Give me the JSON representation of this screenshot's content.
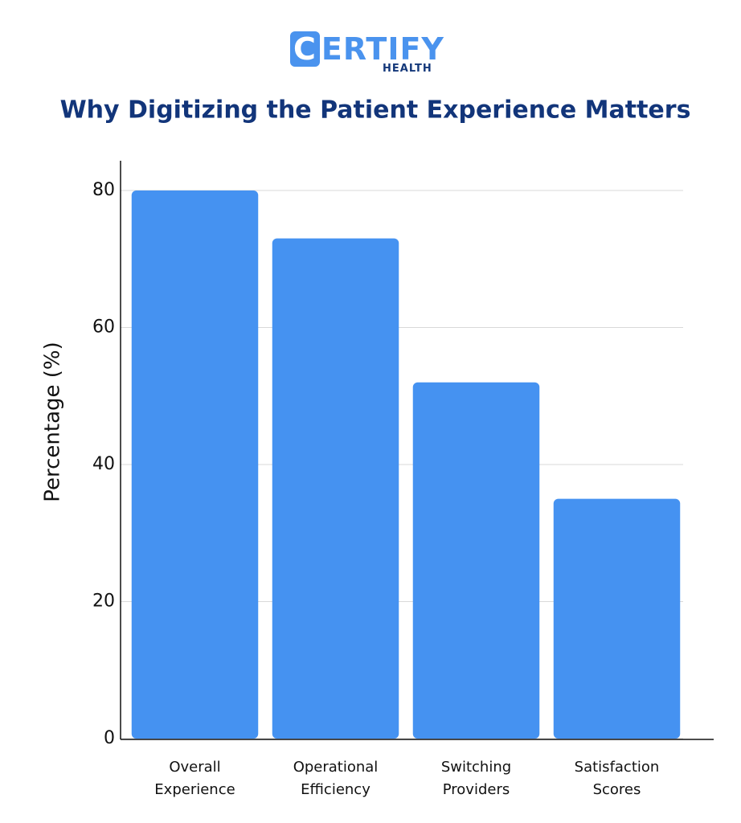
{
  "logo": {
    "name": "CERTIFY",
    "sub": "HEALTH"
  },
  "chart_data": {
    "type": "bar",
    "title": "Why Digitizing the Patient Experience Matters",
    "y_label": "Percentage (%)",
    "categories": [
      "Overall Experience",
      "Operational Efficiency",
      "Switching Providers",
      "Satisfaction Scores"
    ],
    "values": [
      80,
      73,
      52,
      35
    ],
    "color": "#4592f1",
    "ylim": [
      0,
      80
    ],
    "yticks": [
      0,
      20,
      40,
      60,
      80
    ],
    "grid": true
  }
}
